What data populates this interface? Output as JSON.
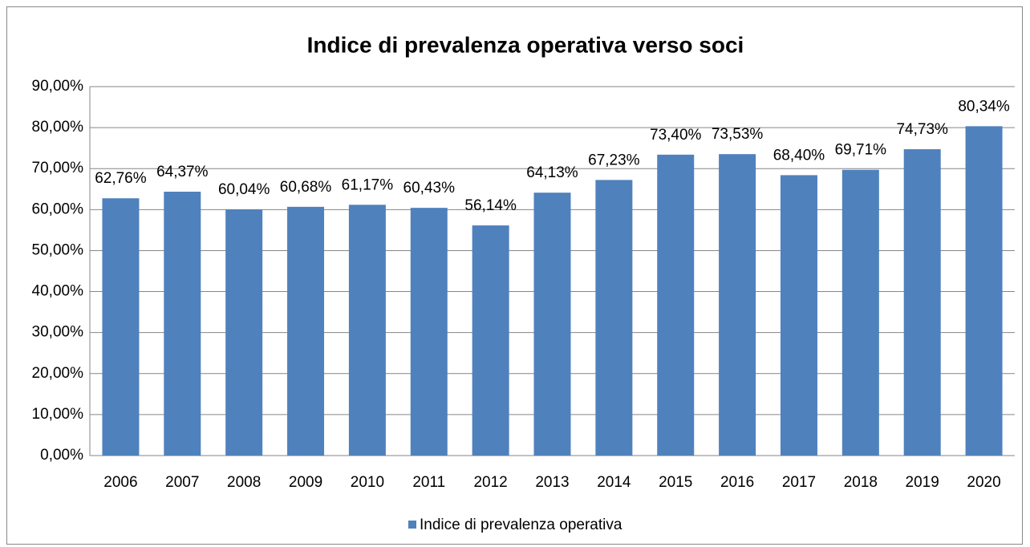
{
  "chart_data": {
    "type": "bar",
    "title": "Indice di prevalenza operativa verso soci",
    "categories": [
      "2006",
      "2007",
      "2008",
      "2009",
      "2010",
      "2011",
      "2012",
      "2013",
      "2014",
      "2015",
      "2016",
      "2017",
      "2018",
      "2019",
      "2020"
    ],
    "series": [
      {
        "name": "Indice di prevalenza operativa",
        "color": "#4f81bd",
        "values": [
          62.76,
          64.37,
          60.04,
          60.68,
          61.17,
          60.43,
          56.14,
          64.13,
          67.23,
          73.4,
          73.53,
          68.4,
          69.71,
          74.73,
          80.34
        ],
        "value_labels": [
          "62,76%",
          "64,37%",
          "60,04%",
          "60,68%",
          "61,17%",
          "60,43%",
          "56,14%",
          "64,13%",
          "67,23%",
          "73,40%",
          "73,53%",
          "68,40%",
          "69,71%",
          "74,73%",
          "80,34%"
        ]
      }
    ],
    "ylim": [
      0,
      90
    ],
    "yticks": [
      {
        "value": 0,
        "label": "0,00%"
      },
      {
        "value": 10,
        "label": "10,00%"
      },
      {
        "value": 20,
        "label": "20,00%"
      },
      {
        "value": 30,
        "label": "30,00%"
      },
      {
        "value": 40,
        "label": "40,00%"
      },
      {
        "value": 50,
        "label": "50,00%"
      },
      {
        "value": 60,
        "label": "60,00%"
      },
      {
        "value": 70,
        "label": "70,00%"
      },
      {
        "value": 80,
        "label": "80,00%"
      },
      {
        "value": 90,
        "label": "90,00%"
      }
    ],
    "grid": true,
    "legend": "bottom"
  }
}
